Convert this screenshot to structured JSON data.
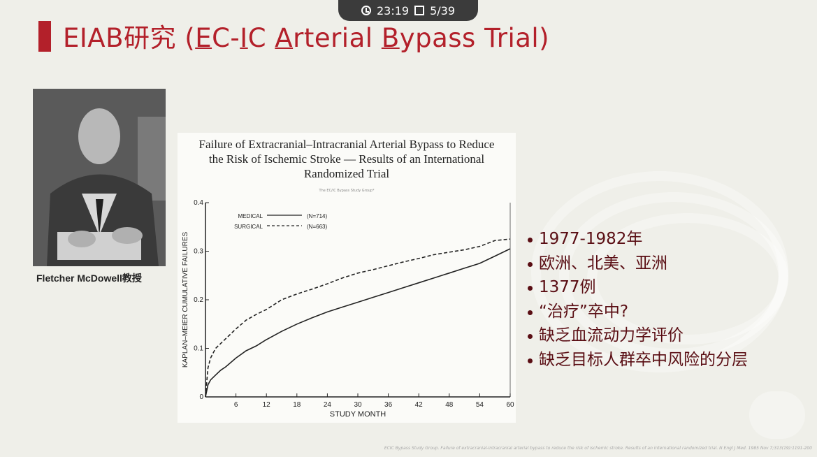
{
  "status_bar": {
    "time": "23:19",
    "page": "5/39"
  },
  "slide": {
    "title_prefix": "EIAB研究 (",
    "title_e": "E",
    "title_c": "C-",
    "title_i": "I",
    "title_c2": "C ",
    "title_a": "A",
    "title_rterial": "rterial ",
    "title_b": "B",
    "title_ypass": "ypass Trial)",
    "accent_color": "#b3202a",
    "photo_caption": "Fletcher McDowell教授",
    "bullets": [
      "1977-1982年",
      "欧洲、北美、亚洲",
      "1377例",
      "“治疗”卒中?",
      "缺乏血流动力学评价",
      "缺乏目标人群卒中风险的分层"
    ],
    "citation": "ECIC Bypass Study Group. Failure of extracranial-intracranial arterial bypass to reduce the risk of ischemic stroke. Results of an international randomized trial. N Engl J Med. 1985 Nov 7;313(19):1191-200"
  },
  "paper": {
    "title_lines": [
      "Failure of Extracranial–Intracranial Arterial Bypass to Reduce",
      "the Risk of Ischemic Stroke — Results of an International",
      "Randomized Trial"
    ],
    "author": "The EC/IC Bypass Study Group*"
  },
  "chart_data": {
    "type": "line",
    "xlabel": "STUDY MONTH",
    "ylabel": "KAPLAN–MEIER CUMULATIVE FAILURES",
    "x_ticks": [
      "6",
      "12",
      "18",
      "24",
      "30",
      "36",
      "42",
      "48",
      "54",
      "60"
    ],
    "y_ticks": [
      "0",
      "0.1",
      "0.2",
      "0.3",
      "0.4"
    ],
    "xlim": [
      0,
      60
    ],
    "ylim": [
      0,
      0.4
    ],
    "legend_placement": "top-left",
    "series": [
      {
        "name": "MEDICAL",
        "n_label": "(N=714)",
        "style": "solid",
        "x": [
          0,
          0.5,
          1,
          2,
          3,
          4,
          6,
          8,
          10,
          12,
          15,
          18,
          21,
          24,
          27,
          30,
          33,
          36,
          39,
          42,
          45,
          48,
          51,
          54,
          57,
          60
        ],
        "y": [
          0,
          0.025,
          0.035,
          0.045,
          0.055,
          0.062,
          0.08,
          0.095,
          0.105,
          0.118,
          0.135,
          0.15,
          0.163,
          0.175,
          0.185,
          0.195,
          0.205,
          0.215,
          0.225,
          0.235,
          0.245,
          0.255,
          0.265,
          0.275,
          0.29,
          0.305
        ]
      },
      {
        "name": "SURGICAL",
        "n_label": "(N=663)",
        "style": "dashed",
        "x": [
          0,
          0.5,
          1,
          1.5,
          2,
          3,
          4,
          6,
          8,
          10,
          12,
          15,
          18,
          21,
          24,
          27,
          30,
          33,
          36,
          39,
          42,
          45,
          48,
          51,
          54,
          57,
          60
        ],
        "y": [
          0,
          0.06,
          0.08,
          0.09,
          0.1,
          0.11,
          0.12,
          0.14,
          0.158,
          0.17,
          0.18,
          0.2,
          0.212,
          0.222,
          0.233,
          0.245,
          0.255,
          0.262,
          0.27,
          0.278,
          0.285,
          0.293,
          0.298,
          0.303,
          0.31,
          0.322,
          0.325
        ]
      }
    ]
  }
}
